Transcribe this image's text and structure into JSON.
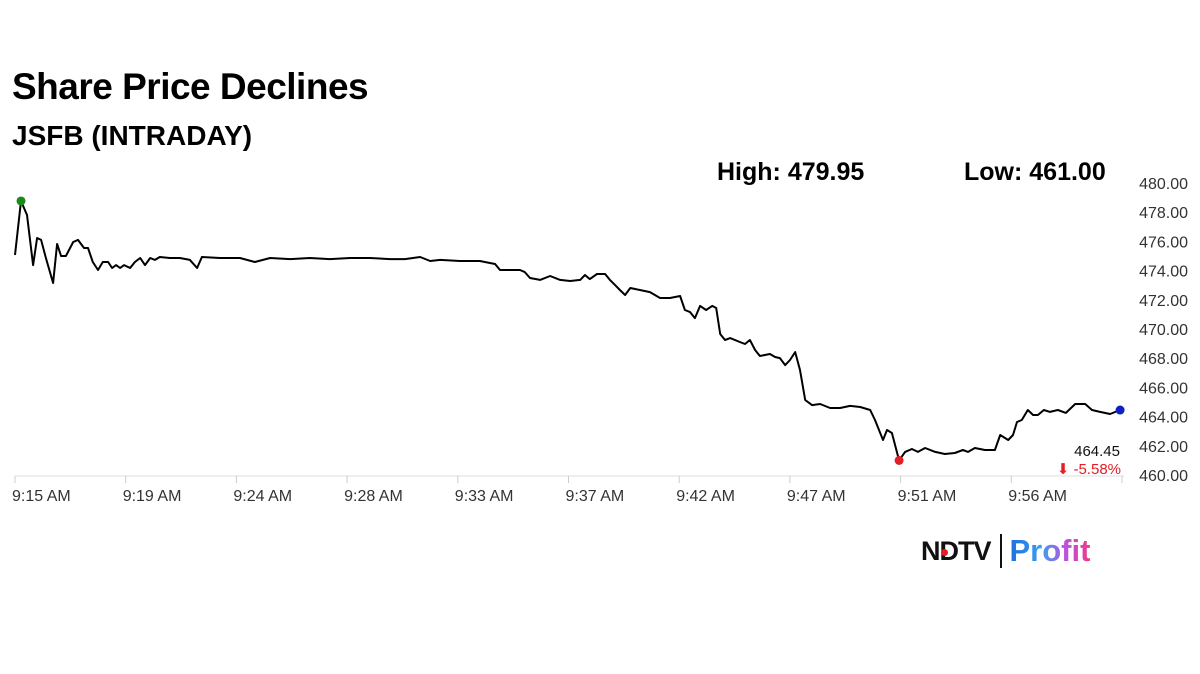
{
  "header": {
    "title": "Share Price Declines",
    "subtitle": "JSFB (INTRADAY)",
    "high_label": "High: 479.95",
    "low_label": "Low: 461.00"
  },
  "last": {
    "price": "464.45",
    "change": "⬇ -5.58%"
  },
  "logo": {
    "brand": "NDTV",
    "product": "Profit"
  },
  "colors": {
    "line": "#000000",
    "high_marker": "#1a8a1a",
    "low_marker": "#e31e24",
    "last_marker": "#1020c0",
    "change": "#e31e24"
  },
  "chart_data": {
    "type": "line",
    "title": "Share Price Declines",
    "subtitle": "JSFB (INTRADAY)",
    "xlabel": "",
    "ylabel": "",
    "ylim": [
      460,
      480
    ],
    "y_ticks": [
      "460.00",
      "462.00",
      "464.00",
      "466.00",
      "468.00",
      "470.00",
      "472.00",
      "474.00",
      "476.00",
      "478.00",
      "480.00"
    ],
    "x_ticks": [
      "9:15 AM",
      "9:19 AM",
      "9:24 AM",
      "9:28 AM",
      "9:33 AM",
      "9:37 AM",
      "9:42 AM",
      "9:47 AM",
      "9:51 AM",
      "9:56 AM"
    ],
    "grid": false,
    "y_axis_position": "right",
    "high": 479.95,
    "low": 461.0,
    "last": 464.45,
    "change_pct": -5.58,
    "points": [
      [
        "9:15:00",
        475.07
      ],
      [
        "9:15:15",
        478.77
      ],
      [
        "9:15:30",
        477.81
      ],
      [
        "9:15:45",
        474.38
      ],
      [
        "9:15:55",
        476.23
      ],
      [
        "9:16:05",
        476.1
      ],
      [
        "9:16:17",
        474.86
      ],
      [
        "9:16:35",
        473.15
      ],
      [
        "9:16:45",
        475.82
      ],
      [
        "9:16:55",
        475.0
      ],
      [
        "9:17:07",
        475.0
      ],
      [
        "9:17:25",
        475.96
      ],
      [
        "9:17:37",
        476.1
      ],
      [
        "9:17:52",
        475.55
      ],
      [
        "9:18:02",
        475.55
      ],
      [
        "9:18:14",
        474.59
      ],
      [
        "9:18:27",
        474.04
      ],
      [
        "9:18:39",
        474.59
      ],
      [
        "9:18:52",
        474.59
      ],
      [
        "9:19:02",
        474.18
      ],
      [
        "9:19:12",
        474.38
      ],
      [
        "9:19:22",
        474.18
      ],
      [
        "9:19:32",
        474.38
      ],
      [
        "9:19:47",
        474.18
      ],
      [
        "9:19:59",
        474.59
      ],
      [
        "9:20:12",
        474.86
      ],
      [
        "9:20:24",
        474.38
      ],
      [
        "9:20:37",
        474.86
      ],
      [
        "9:20:49",
        474.73
      ],
      [
        "9:21:01",
        474.93
      ],
      [
        "9:21:26",
        474.86
      ],
      [
        "9:21:51",
        474.86
      ],
      [
        "9:22:16",
        474.73
      ],
      [
        "9:22:34",
        474.18
      ],
      [
        "9:22:46",
        474.93
      ],
      [
        "9:23:31",
        474.86
      ],
      [
        "9:24:21",
        474.86
      ],
      [
        "9:24:58",
        474.59
      ],
      [
        "9:25:36",
        474.86
      ],
      [
        "9:26:26",
        474.79
      ],
      [
        "9:27:15",
        474.86
      ],
      [
        "9:28:05",
        474.79
      ],
      [
        "9:28:55",
        474.86
      ],
      [
        "9:29:45",
        474.86
      ],
      [
        "9:30:35",
        474.79
      ],
      [
        "9:31:12",
        474.79
      ],
      [
        "9:31:50",
        474.93
      ],
      [
        "9:32:15",
        474.66
      ],
      [
        "9:32:40",
        474.73
      ],
      [
        "9:33:29",
        474.66
      ],
      [
        "9:34:19",
        474.66
      ],
      [
        "9:34:44",
        474.52
      ],
      [
        "9:34:57",
        474.45
      ],
      [
        "9:35:09",
        474.04
      ],
      [
        "9:35:34",
        474.04
      ],
      [
        "9:35:59",
        474.04
      ],
      [
        "9:36:11",
        473.9
      ],
      [
        "9:36:24",
        473.49
      ],
      [
        "9:36:49",
        473.36
      ],
      [
        "9:37:14",
        473.63
      ],
      [
        "9:37:39",
        473.36
      ],
      [
        "9:38:04",
        473.29
      ],
      [
        "9:38:29",
        473.36
      ],
      [
        "9:38:41",
        473.7
      ],
      [
        "9:38:53",
        473.42
      ],
      [
        "9:39:11",
        473.77
      ],
      [
        "9:39:31",
        473.77
      ],
      [
        "9:39:43",
        473.36
      ],
      [
        "9:39:56",
        473.01
      ],
      [
        "9:40:08",
        472.67
      ],
      [
        "9:40:21",
        472.33
      ],
      [
        "9:40:34",
        472.81
      ],
      [
        "9:40:58",
        472.67
      ],
      [
        "9:41:23",
        472.53
      ],
      [
        "9:41:48",
        472.12
      ],
      [
        "9:42:13",
        472.12
      ],
      [
        "9:42:38",
        472.26
      ],
      [
        "9:42:50",
        471.3
      ],
      [
        "9:43:03",
        471.16
      ],
      [
        "9:43:15",
        470.75
      ],
      [
        "9:43:28",
        471.58
      ],
      [
        "9:43:43",
        471.3
      ],
      [
        "9:43:58",
        471.58
      ],
      [
        "9:44:08",
        471.44
      ],
      [
        "9:44:18",
        469.66
      ],
      [
        "9:44:30",
        469.25
      ],
      [
        "9:44:43",
        469.38
      ],
      [
        "9:45:07",
        469.11
      ],
      [
        "9:45:20",
        468.97
      ],
      [
        "9:45:32",
        469.25
      ],
      [
        "9:45:45",
        468.56
      ],
      [
        "9:45:57",
        468.15
      ],
      [
        "9:46:22",
        468.29
      ],
      [
        "9:46:35",
        468.08
      ],
      [
        "9:46:47",
        468.01
      ],
      [
        "9:47:00",
        467.53
      ],
      [
        "9:47:12",
        467.88
      ],
      [
        "9:47:25",
        468.42
      ],
      [
        "9:47:37",
        467.19
      ],
      [
        "9:47:50",
        465.14
      ],
      [
        "9:48:07",
        464.79
      ],
      [
        "9:48:27",
        464.86
      ],
      [
        "9:48:52",
        464.59
      ],
      [
        "9:49:17",
        464.59
      ],
      [
        "9:49:42",
        464.73
      ],
      [
        "9:50:07",
        464.66
      ],
      [
        "9:50:32",
        464.45
      ],
      [
        "9:50:44",
        463.77
      ],
      [
        "9:51:04",
        462.4
      ],
      [
        "9:51:14",
        463.08
      ],
      [
        "9:51:26",
        462.88
      ],
      [
        "9:51:44",
        461.0
      ],
      [
        "9:51:59",
        461.58
      ],
      [
        "9:52:16",
        461.78
      ],
      [
        "9:52:31",
        461.58
      ],
      [
        "9:52:49",
        461.85
      ],
      [
        "9:53:14",
        461.58
      ],
      [
        "9:53:38",
        461.44
      ],
      [
        "9:54:03",
        461.51
      ],
      [
        "9:54:23",
        461.71
      ],
      [
        "9:54:36",
        461.58
      ],
      [
        "9:54:53",
        461.85
      ],
      [
        "9:55:18",
        461.71
      ],
      [
        "9:55:43",
        461.71
      ],
      [
        "9:55:56",
        462.74
      ],
      [
        "9:56:16",
        462.4
      ],
      [
        "9:56:28",
        462.74
      ],
      [
        "9:56:38",
        463.63
      ],
      [
        "9:56:50",
        463.77
      ],
      [
        "9:57:05",
        464.45
      ],
      [
        "9:57:18",
        464.11
      ],
      [
        "9:57:30",
        464.11
      ],
      [
        "9:57:45",
        464.45
      ],
      [
        "9:58:00",
        464.32
      ],
      [
        "9:58:20",
        464.45
      ],
      [
        "9:58:40",
        464.25
      ],
      [
        "9:59:03",
        464.86
      ],
      [
        "9:59:28",
        464.86
      ],
      [
        "9:59:45",
        464.45
      ],
      [
        "10:00:05",
        464.32
      ],
      [
        "10:00:30",
        464.18
      ],
      [
        "10:00:55",
        464.45
      ]
    ]
  }
}
